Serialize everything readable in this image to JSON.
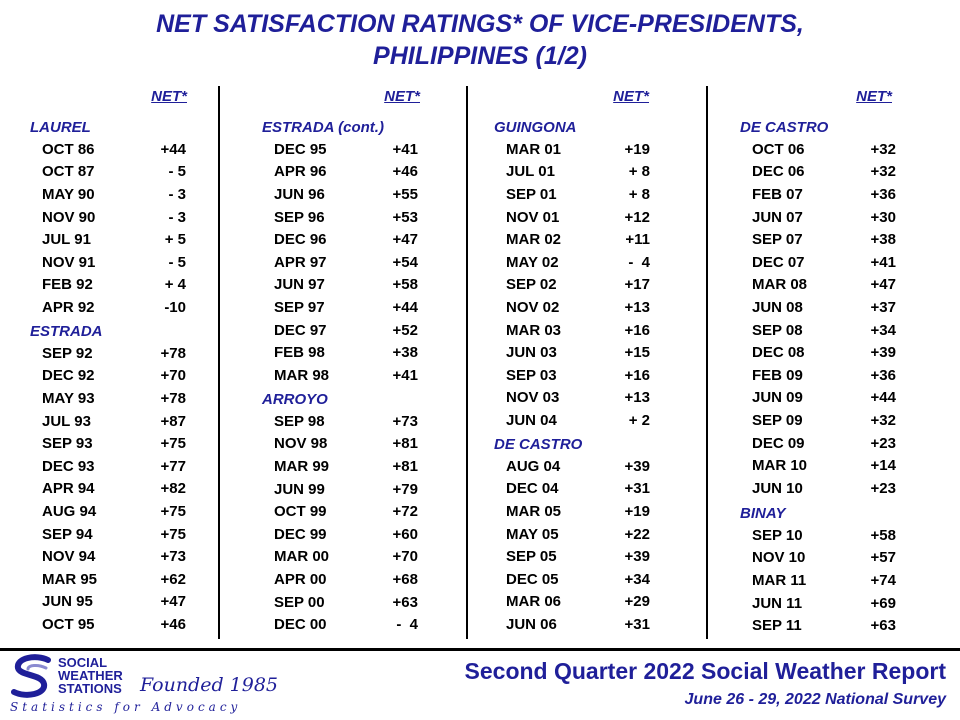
{
  "title": {
    "line1": "NET SATISFACTION  RATINGS* OF VICE-PRESIDENTS,",
    "line2": "PHILIPPINES  (1/2)"
  },
  "net_header": "NET*",
  "columns": [
    {
      "sections": [
        {
          "name": "LAUREL",
          "rows": [
            {
              "date": "OCT 86",
              "value": "+44"
            },
            {
              "date": "OCT 87",
              "value": "- 5"
            },
            {
              "date": "MAY 90",
              "value": "- 3"
            },
            {
              "date": "NOV 90",
              "value": "- 3"
            },
            {
              "date": "JUL 91",
              "value": "+ 5"
            },
            {
              "date": "NOV 91",
              "value": "- 5"
            },
            {
              "date": "FEB 92",
              "value": "+ 4"
            },
            {
              "date": "APR 92",
              "value": "-10"
            }
          ]
        },
        {
          "name": "ESTRADA",
          "rows": [
            {
              "date": "SEP 92",
              "value": "+78"
            },
            {
              "date": "DEC 92",
              "value": "+70"
            },
            {
              "date": "MAY 93",
              "value": "+78"
            },
            {
              "date": "JUL 93",
              "value": "+87"
            },
            {
              "date": "SEP 93",
              "value": "+75"
            },
            {
              "date": "DEC 93",
              "value": "+77"
            },
            {
              "date": "APR 94",
              "value": "+82"
            },
            {
              "date": "AUG 94",
              "value": "+75"
            },
            {
              "date": "SEP 94",
              "value": "+75"
            },
            {
              "date": "NOV 94",
              "value": "+73"
            },
            {
              "date": "MAR 95",
              "value": "+62"
            },
            {
              "date": "JUN 95",
              "value": "+47"
            },
            {
              "date": "OCT 95",
              "value": "+46"
            }
          ]
        }
      ]
    },
    {
      "sections": [
        {
          "name": "ESTRADA (cont.)",
          "rows": [
            {
              "date": "DEC 95",
              "value": "+41"
            },
            {
              "date": "APR 96",
              "value": "+46"
            },
            {
              "date": "JUN 96",
              "value": "+55"
            },
            {
              "date": "SEP 96",
              "value": "+53"
            },
            {
              "date": "DEC 96",
              "value": "+47"
            },
            {
              "date": "APR 97",
              "value": "+54"
            },
            {
              "date": "JUN 97",
              "value": "+58"
            },
            {
              "date": "SEP 97",
              "value": "+44"
            },
            {
              "date": "DEC 97",
              "value": "+52"
            },
            {
              "date": "FEB 98",
              "value": "+38"
            },
            {
              "date": "MAR 98",
              "value": "+41"
            }
          ]
        },
        {
          "name": "ARROYO",
          "rows": [
            {
              "date": "SEP 98",
              "value": "+73"
            },
            {
              "date": "NOV 98",
              "value": "+81"
            },
            {
              "date": "MAR 99",
              "value": "+81"
            },
            {
              "date": "JUN 99",
              "value": "+79"
            },
            {
              "date": "OCT 99",
              "value": "+72"
            },
            {
              "date": "DEC 99",
              "value": "+60"
            },
            {
              "date": "MAR 00",
              "value": "+70"
            },
            {
              "date": "APR 00",
              "value": "+68"
            },
            {
              "date": "SEP 00",
              "value": "+63"
            },
            {
              "date": "DEC 00",
              "value": "-  4"
            }
          ]
        }
      ]
    },
    {
      "sections": [
        {
          "name": "GUINGONA",
          "rows": [
            {
              "date": "MAR 01",
              "value": "+19"
            },
            {
              "date": "JUL 01",
              "value": "+ 8"
            },
            {
              "date": "SEP 01",
              "value": "+ 8"
            },
            {
              "date": "NOV 01",
              "value": "+12"
            },
            {
              "date": "MAR 02",
              "value": "+11"
            },
            {
              "date": "MAY 02",
              "value": "-  4"
            },
            {
              "date": "SEP 02",
              "value": "+17"
            },
            {
              "date": "NOV 02",
              "value": "+13"
            },
            {
              "date": "MAR 03",
              "value": "+16"
            },
            {
              "date": "JUN 03",
              "value": "+15"
            },
            {
              "date": "SEP 03",
              "value": "+16"
            },
            {
              "date": "NOV 03",
              "value": "+13"
            },
            {
              "date": "JUN 04",
              "value": "+ 2"
            }
          ]
        },
        {
          "name": "DE CASTRO",
          "rows": [
            {
              "date": "AUG 04",
              "value": "+39"
            },
            {
              "date": "DEC 04",
              "value": "+31"
            },
            {
              "date": "MAR 05",
              "value": "+19"
            },
            {
              "date": "MAY 05",
              "value": "+22"
            },
            {
              "date": "SEP 05",
              "value": "+39"
            },
            {
              "date": "DEC 05",
              "value": "+34"
            },
            {
              "date": "MAR 06",
              "value": "+29"
            },
            {
              "date": "JUN 06",
              "value": "+31"
            }
          ]
        }
      ]
    },
    {
      "sections": [
        {
          "name": "DE CASTRO",
          "rows": [
            {
              "date": "OCT 06",
              "value": "+32"
            },
            {
              "date": "DEC 06",
              "value": "+32"
            },
            {
              "date": "FEB 07",
              "value": "+36"
            },
            {
              "date": "JUN 07",
              "value": "+30"
            },
            {
              "date": "SEP 07",
              "value": "+38"
            },
            {
              "date": "DEC 07",
              "value": "+41"
            },
            {
              "date": "MAR 08",
              "value": "+47"
            },
            {
              "date": "JUN 08",
              "value": "+37"
            },
            {
              "date": "SEP 08",
              "value": "+34"
            },
            {
              "date": "DEC 08",
              "value": "+39"
            },
            {
              "date": "FEB 09",
              "value": "+36"
            },
            {
              "date": "JUN 09",
              "value": "+44"
            },
            {
              "date": "SEP 09",
              "value": "+32"
            },
            {
              "date": "DEC 09",
              "value": "+23"
            },
            {
              "date": "MAR 10",
              "value": "+14"
            },
            {
              "date": "JUN 10",
              "value": "+23"
            }
          ]
        },
        {
          "name": "BINAY",
          "rows": [
            {
              "date": "SEP 10",
              "value": "+58"
            },
            {
              "date": "NOV 10",
              "value": "+57"
            },
            {
              "date": "MAR 11",
              "value": "+74"
            },
            {
              "date": "JUN 11",
              "value": "+69"
            },
            {
              "date": "SEP 11",
              "value": "+63"
            }
          ]
        }
      ]
    }
  ],
  "footer": {
    "title": "Second Quarter 2022 Social Weather Report",
    "subtitle": "June 26 - 29, 2022 National Survey"
  },
  "logo": {
    "line1": "SOCIAL",
    "line2": "WEATHER",
    "line3": "STATIONS",
    "founded": "Founded 1985",
    "tagline": "Statistics for Advocacy"
  },
  "colors": {
    "accent": "#1f1f99",
    "text": "#000000"
  }
}
